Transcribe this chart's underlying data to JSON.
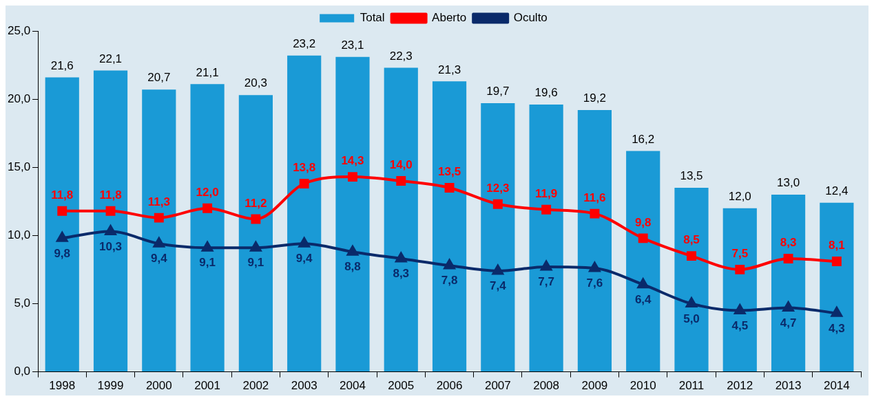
{
  "chart_data": {
    "type": "bar",
    "categories": [
      "1998",
      "1999",
      "2000",
      "2001",
      "2002",
      "2003",
      "2004",
      "2005",
      "2006",
      "2007",
      "2008",
      "2009",
      "2010",
      "2011",
      "2012",
      "2013",
      "2014"
    ],
    "series": [
      {
        "name": "Total",
        "color": "#1a9ad6",
        "values": [
          21.6,
          22.1,
          20.7,
          21.1,
          20.3,
          23.2,
          23.1,
          22.3,
          21.3,
          19.7,
          19.6,
          19.2,
          16.2,
          13.5,
          12.0,
          13.0,
          12.4
        ],
        "value_labels": [
          "21,6",
          "22,1",
          "20,7",
          "21,1",
          "20,3",
          "23,2",
          "23,1",
          "22,3",
          "21,3",
          "19,7",
          "19,6",
          "19,2",
          "16,2",
          "13,5",
          "12,0",
          "13,0",
          "12,4"
        ]
      },
      {
        "name": "Aberto",
        "type": "line",
        "color": "#ff0000",
        "marker": "square",
        "values": [
          11.8,
          11.8,
          11.3,
          12.0,
          11.2,
          13.8,
          14.3,
          14.0,
          13.5,
          12.3,
          11.9,
          11.6,
          9.8,
          8.5,
          7.5,
          8.3,
          8.1
        ],
        "value_labels": [
          "11,8",
          "11,8",
          "11,3",
          "12,0",
          "11,2",
          "13,8",
          "14,3",
          "14,0",
          "13,5",
          "12,3",
          "11,9",
          "11,6",
          "9,8",
          "8,5",
          "7,5",
          "8,3",
          "8,1"
        ]
      },
      {
        "name": "Oculto",
        "type": "line",
        "color": "#0a2a6a",
        "marker": "triangle",
        "values": [
          9.8,
          10.3,
          9.4,
          9.1,
          9.1,
          9.4,
          8.8,
          8.3,
          7.8,
          7.4,
          7.7,
          7.6,
          6.4,
          5.0,
          4.5,
          4.7,
          4.3
        ],
        "value_labels": [
          "9,8",
          "10,3",
          "9,4",
          "9,1",
          "9,1",
          "9,4",
          "8,8",
          "8,3",
          "7,8",
          "7,4",
          "7,7",
          "7,6",
          "6,4",
          "5,0",
          "4,5",
          "4,7",
          "4,3"
        ]
      }
    ],
    "ylim": [
      0,
      25
    ],
    "yticks": [
      {
        "value": 0,
        "label": "0,0"
      },
      {
        "value": 5,
        "label": "5,0"
      },
      {
        "value": 10,
        "label": "10,0"
      },
      {
        "value": 15,
        "label": "15,0"
      },
      {
        "value": 20,
        "label": "20,0"
      },
      {
        "value": 25,
        "label": "25,0"
      }
    ],
    "grid": false,
    "legend": "top"
  }
}
